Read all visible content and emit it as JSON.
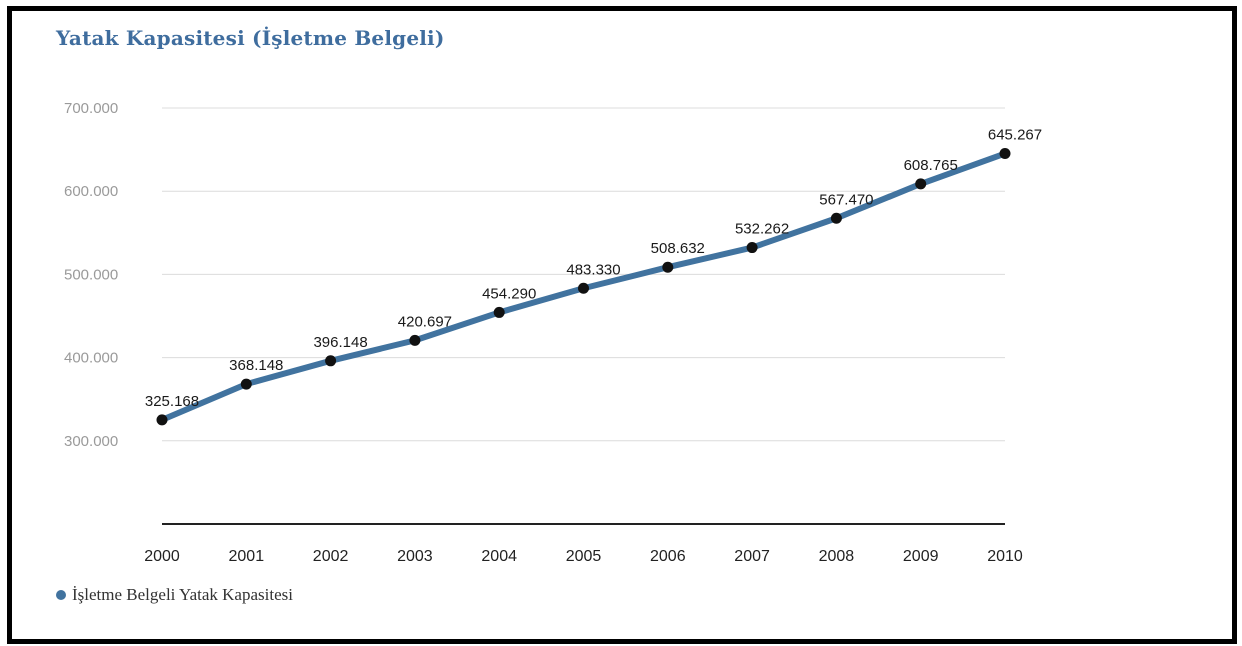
{
  "title": "Yatak Kapasitesi (İşletme Belgeli)",
  "colors": {
    "series": "#41739f",
    "marker": "#111111",
    "title": "#3f6d9e"
  },
  "legend": {
    "label": "İşletme Belgeli Yatak Kapasitesi",
    "placement": "bottom-left"
  },
  "chart_data": {
    "type": "line",
    "title": "Yatak Kapasitesi (İşletme Belgeli)",
    "x": [
      "2000",
      "2001",
      "2002",
      "2003",
      "2004",
      "2005",
      "2006",
      "2007",
      "2008",
      "2009",
      "2010"
    ],
    "series": [
      {
        "name": "İşletme Belgeli Yatak Kapasitesi",
        "values": [
          325168,
          368148,
          396148,
          420697,
          454290,
          483330,
          508632,
          532262,
          567470,
          608765,
          645267
        ],
        "labels": [
          "325.168",
          "368.148",
          "396.148",
          "420.697",
          "454.290",
          "483.330",
          "508.632",
          "532.262",
          "567.470",
          "608.765",
          "645.267"
        ]
      }
    ],
    "y_ticks": [
      300000,
      400000,
      500000,
      600000,
      700000
    ],
    "y_tick_labels": [
      "300.000",
      "400.000",
      "500.000",
      "600.000",
      "700.000"
    ],
    "ylim": [
      200000,
      700000
    ],
    "grid": true,
    "legend": "bottom-left"
  }
}
